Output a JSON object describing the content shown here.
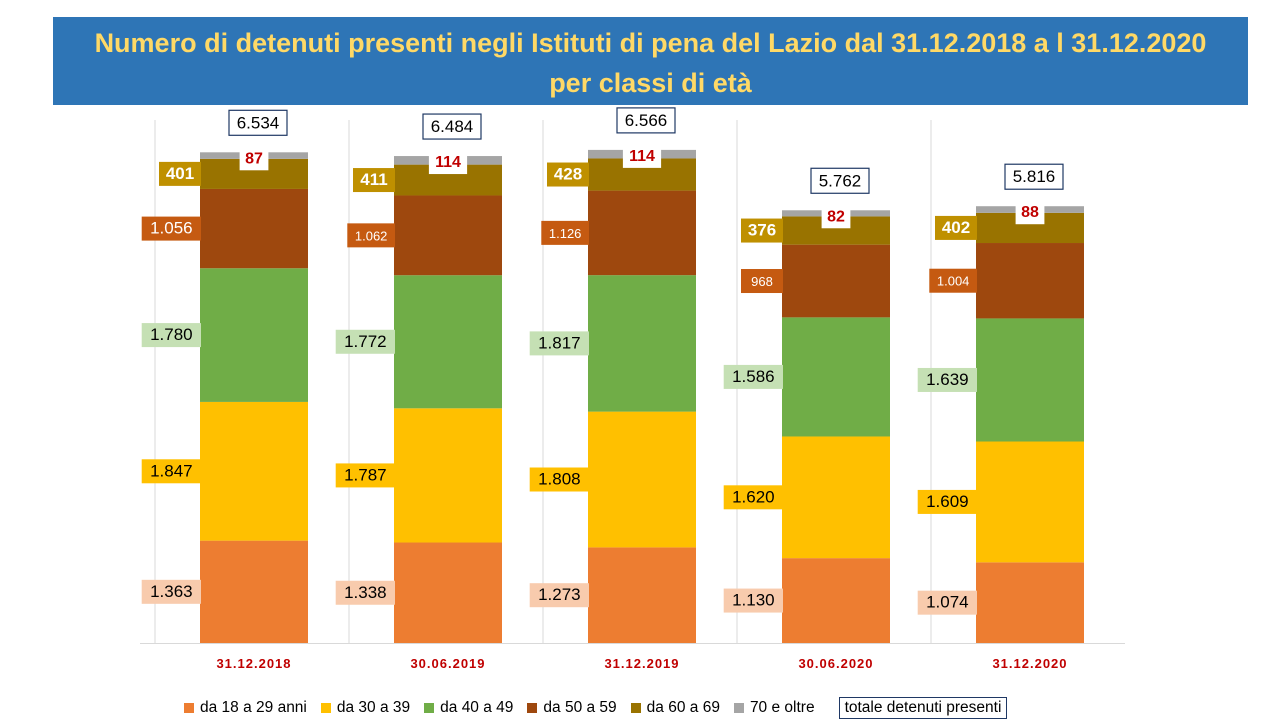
{
  "title": {
    "line1": "Numero di detenuti presenti negli Istituti di pena del Lazio dal 31.12.2018 a l 31.12.2020",
    "line2": "per classi di età"
  },
  "colors": {
    "title_bg": "#2e75b6",
    "title_text": "#ffd966",
    "date_label": "#c00000",
    "total_border": "#1f3864"
  },
  "chart_data": {
    "type": "bar",
    "stacked": true,
    "categories": [
      "31.12.2018",
      "30.06.2019",
      "31.12.2019",
      "30.06.2020",
      "31.12.2020"
    ],
    "series": [
      {
        "name": "da 18 a 29 anni",
        "color": "#ed7d31",
        "label_bg": "#f8cbad",
        "label_color": "#000000",
        "values": [
          1363,
          1338,
          1273,
          1130,
          1074
        ],
        "labels": [
          "1.363",
          "1.338",
          "1.273",
          "1.130",
          "1.074"
        ]
      },
      {
        "name": "da 30 a 39",
        "color": "#ffc000",
        "label_bg": "#ffc000",
        "label_color": "#000000",
        "values": [
          1847,
          1787,
          1808,
          1620,
          1609
        ],
        "labels": [
          "1.847",
          "1.787",
          "1.808",
          "1.620",
          "1.609"
        ]
      },
      {
        "name": "da 40 a 49",
        "color": "#70ad47",
        "label_bg": "#c5e0b4",
        "label_color": "#000000",
        "values": [
          1780,
          1772,
          1817,
          1586,
          1639
        ],
        "labels": [
          "1.780",
          "1.772",
          "1.817",
          "1.586",
          "1.639"
        ]
      },
      {
        "name": "da 50 a 59",
        "color": "#9e480e",
        "label_bg": "#c55a11",
        "label_color": "#ffffff",
        "values": [
          1056,
          1062,
          1126,
          968,
          1004
        ],
        "labels": [
          "1.056",
          "1.062",
          "1.126",
          "968",
          "1.004"
        ]
      },
      {
        "name": "da 60 a 69",
        "color": "#997300",
        "label_bg": "#bf9000",
        "label_color": "#ffffff",
        "values": [
          401,
          411,
          428,
          376,
          402
        ],
        "labels": [
          "401",
          "411",
          "428",
          "376",
          "402"
        ]
      },
      {
        "name": "70 e oltre",
        "color": "#a5a5a5",
        "label_bg": "#ffffff",
        "label_color": "#c00000",
        "values": [
          87,
          114,
          114,
          82,
          88
        ],
        "labels": [
          "87",
          "114",
          "114",
          "82",
          "88"
        ]
      }
    ],
    "totals": {
      "name": "totale detenuti presenti",
      "values": [
        6534,
        6484,
        6566,
        5762,
        5816
      ],
      "labels": [
        "6.534",
        "6.484",
        "6.566",
        "5.762",
        "5.816"
      ]
    },
    "ylim": [
      0,
      7000
    ],
    "grid": false,
    "legend": "bottom"
  }
}
